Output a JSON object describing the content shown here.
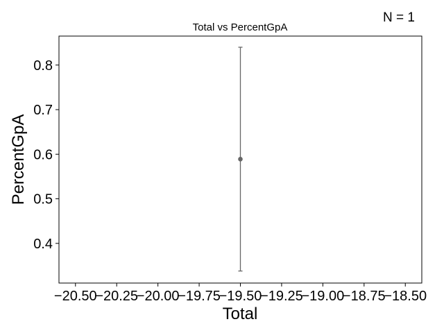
{
  "annotation": "N = 1",
  "chart_data": {
    "type": "scatter",
    "title": "Total vs PercentGpA",
    "xlabel": "Total",
    "ylabel": "PercentGpA",
    "xlim": [
      -20.6,
      -18.4
    ],
    "ylim": [
      0.311,
      0.865
    ],
    "x_ticks": [
      -20.5,
      -20.25,
      -20.0,
      -19.75,
      -19.5,
      -19.25,
      -19.0,
      -18.75,
      -18.5
    ],
    "x_tick_labels": [
      "−20.50",
      "−20.25",
      "−20.00",
      "−19.75",
      "−19.50",
      "−19.25",
      "−19.00",
      "−18.75",
      "−18.50"
    ],
    "y_ticks": [
      0.4,
      0.5,
      0.6,
      0.7,
      0.8
    ],
    "y_tick_labels": [
      "0.4",
      "0.5",
      "0.6",
      "0.7",
      "0.8"
    ],
    "grid": false,
    "series": [
      {
        "x": [
          -19.5
        ],
        "y": [
          0.589
        ],
        "yerr_low": [
          0.338
        ],
        "yerr_high": [
          0.84
        ],
        "color": "#666666"
      }
    ]
  }
}
